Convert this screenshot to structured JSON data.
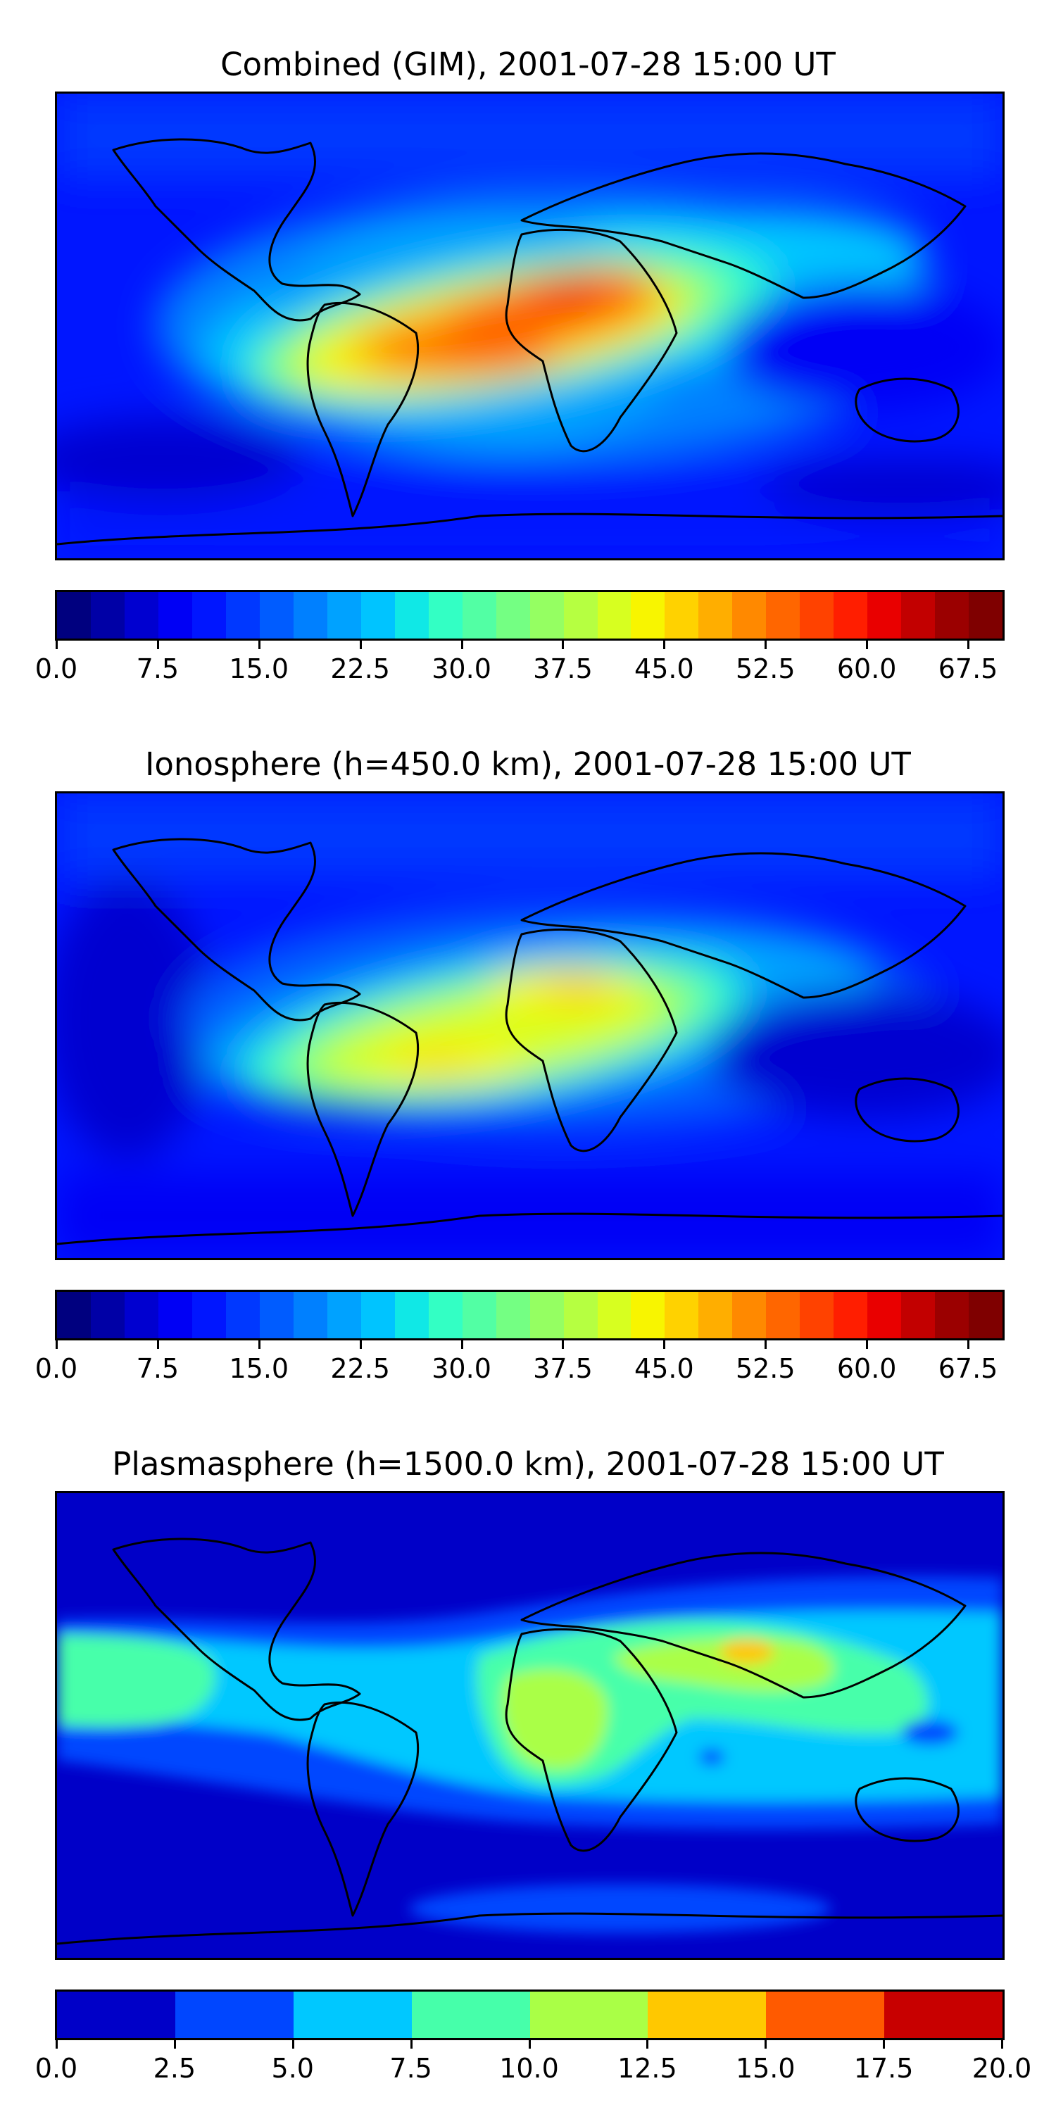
{
  "panels": [
    {
      "id": "combined",
      "title": "Combined (GIM), 2001-07-28 15:00 UT",
      "colorbar": {
        "min": 0,
        "max": 70,
        "step": 2.5,
        "tick_labels": [
          "0.0",
          "7.5",
          "15.0",
          "22.5",
          "30.0",
          "37.5",
          "45.0",
          "52.5",
          "60.0",
          "67.5"
        ],
        "tick_values": [
          0,
          7.5,
          15,
          22.5,
          30,
          37.5,
          45,
          52.5,
          60,
          67.5
        ],
        "colors": [
          "#00007f",
          "#0000a6",
          "#0000d0",
          "#0000f5",
          "#0016ff",
          "#0038ff",
          "#005cff",
          "#0080ff",
          "#00a2ff",
          "#00c4ff",
          "#10e8e6",
          "#33ffc4",
          "#52ffa4",
          "#74ff83",
          "#95ff62",
          "#b6ff41",
          "#d7ff20",
          "#f8f500",
          "#ffd200",
          "#ffae00",
          "#ff8900",
          "#ff6600",
          "#ff4200",
          "#ff1e00",
          "#e90000",
          "#c20000",
          "#9b0000",
          "#7f0000"
        ]
      }
    },
    {
      "id": "ionosphere",
      "title": "Ionosphere  (h=450.0 km), 2001-07-28 15:00 UT",
      "colorbar": {
        "min": 0,
        "max": 70,
        "step": 2.5,
        "tick_labels": [
          "0.0",
          "7.5",
          "15.0",
          "22.5",
          "30.0",
          "37.5",
          "45.0",
          "52.5",
          "60.0",
          "67.5"
        ],
        "tick_values": [
          0,
          7.5,
          15,
          22.5,
          30,
          37.5,
          45,
          52.5,
          60,
          67.5
        ],
        "colors": [
          "#00007f",
          "#0000a6",
          "#0000d0",
          "#0000f5",
          "#0016ff",
          "#0038ff",
          "#005cff",
          "#0080ff",
          "#00a2ff",
          "#00c4ff",
          "#10e8e6",
          "#33ffc4",
          "#52ffa4",
          "#74ff83",
          "#95ff62",
          "#b6ff41",
          "#d7ff20",
          "#f8f500",
          "#ffd200",
          "#ffae00",
          "#ff8900",
          "#ff6600",
          "#ff4200",
          "#ff1e00",
          "#e90000",
          "#c20000",
          "#9b0000",
          "#7f0000"
        ]
      }
    },
    {
      "id": "plasmasphere",
      "title": "Plasmasphere (h=1500.0 km), 2001-07-28 15:00 UT",
      "colorbar": {
        "min": 0,
        "max": 20,
        "step": 2.5,
        "tick_labels": [
          "0.0",
          "2.5",
          "5.0",
          "7.5",
          "10.0",
          "12.5",
          "15.0",
          "17.5",
          "20.0"
        ],
        "tick_values": [
          0,
          2.5,
          5,
          7.5,
          10,
          12.5,
          15,
          17.5,
          20
        ],
        "colors": [
          "#0000c8",
          "#0046ff",
          "#00c8ff",
          "#46ffaa",
          "#aaff46",
          "#ffc800",
          "#ff5a00",
          "#c80000"
        ]
      }
    }
  ]
}
